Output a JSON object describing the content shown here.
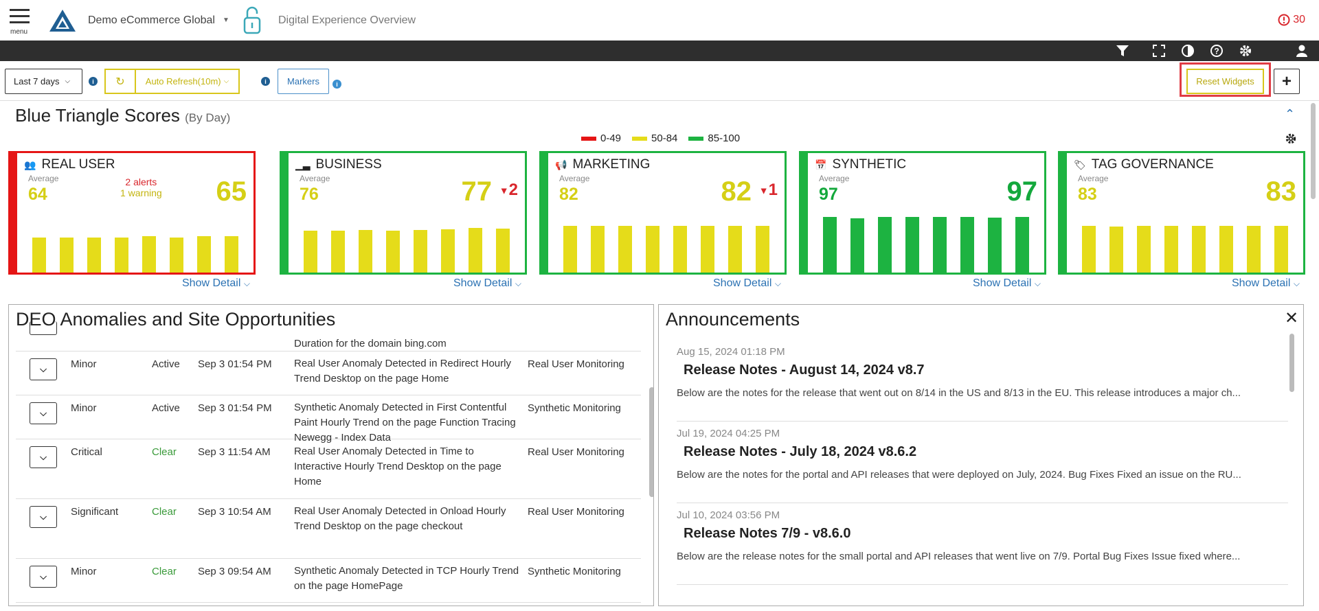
{
  "header": {
    "menu_label": "menu",
    "site_name": "Demo eCommerce Global",
    "page_name": "Digital Experience Overview",
    "alert_count": "30"
  },
  "toolbar_icons": [
    "filter-icon",
    "fullscreen-icon",
    "contrast-icon",
    "help-icon",
    "gear-icon",
    "user-icon"
  ],
  "controls": {
    "date_range": "Last 7 days",
    "auto_refresh": "Auto Refresh(10m)",
    "markers": "Markers",
    "reset_widgets": "Reset Widgets",
    "add": "+"
  },
  "scores": {
    "title": "Blue Triangle Scores",
    "subtitle": "(By Day)",
    "legend": [
      {
        "label": "0-49",
        "color": "#e51515"
      },
      {
        "label": "50-84",
        "color": "#e5dc1a"
      },
      {
        "label": "85-100",
        "color": "#1db341"
      }
    ],
    "cards": [
      {
        "name": "REAL USER",
        "avg_label": "Average",
        "avg": "64",
        "score": "65",
        "delta": "",
        "alerts": "2 alerts",
        "warnings": "1 warning",
        "status": "red",
        "bar_levels": [
          0.62,
          0.62,
          0.62,
          0.62,
          0.64,
          0.62,
          0.64,
          0.64
        ],
        "show_detail": "Show Detail"
      },
      {
        "name": "BUSINESS",
        "avg_label": "Average",
        "avg": "76",
        "score": "77",
        "delta": "2",
        "alerts": "",
        "warnings": "",
        "status": "yellow",
        "bar_levels": [
          0.73,
          0.74,
          0.75,
          0.74,
          0.75,
          0.76,
          0.78,
          0.77
        ],
        "show_detail": "Show Detail"
      },
      {
        "name": "MARKETING",
        "avg_label": "Average",
        "avg": "82",
        "score": "82",
        "delta": "1",
        "alerts": "",
        "warnings": "",
        "status": "yellow",
        "bar_levels": [
          0.82,
          0.82,
          0.82,
          0.82,
          0.82,
          0.82,
          0.82,
          0.82
        ],
        "show_detail": "Show Detail"
      },
      {
        "name": "SYNTHETIC",
        "avg_label": "Average",
        "avg": "97",
        "score": "97",
        "delta": "",
        "alerts": "",
        "warnings": "",
        "status": "green",
        "bar_levels": [
          0.98,
          0.95,
          0.97,
          0.97,
          0.97,
          0.97,
          0.96,
          0.97
        ],
        "show_detail": "Show Detail"
      },
      {
        "name": "TAG GOVERNANCE",
        "avg_label": "Average",
        "avg": "83",
        "score": "83",
        "delta": "",
        "alerts": "",
        "warnings": "",
        "status": "yellow",
        "bar_levels": [
          0.82,
          0.81,
          0.82,
          0.82,
          0.82,
          0.82,
          0.82,
          0.82
        ],
        "show_detail": "Show Detail"
      }
    ]
  },
  "anomalies": {
    "title": "DEO Anomalies and Site Opportunities",
    "partial_row_text": "Duration for the domain bing.com",
    "rows": [
      {
        "severity": "Minor",
        "status": "Active",
        "time": "Sep 3 01:54 PM",
        "description": "Real User Anomaly Detected in Redirect Hourly Trend Desktop on the page Home",
        "source": "Real User Monitoring"
      },
      {
        "severity": "Minor",
        "status": "Active",
        "time": "Sep 3 01:54 PM",
        "description": "Synthetic Anomaly Detected in First Contentful Paint Hourly Trend on the page Function Tracing Newegg - Index Data",
        "source": "Synthetic Monitoring"
      },
      {
        "severity": "Critical",
        "status": "Clear",
        "time": "Sep 3 11:54 AM",
        "description": "Real User Anomaly Detected in Time to Interactive Hourly Trend Desktop on the page Home",
        "source": "Real User Monitoring"
      },
      {
        "severity": "Significant",
        "status": "Clear",
        "time": "Sep 3 10:54 AM",
        "description": "Real User Anomaly Detected in Onload Hourly Trend Desktop on the page checkout",
        "source": "Real User Monitoring"
      },
      {
        "severity": "Minor",
        "status": "Clear",
        "time": "Sep 3 09:54 AM",
        "description": "Synthetic Anomaly Detected in TCP Hourly Trend on the page HomePage",
        "source": "Synthetic Monitoring"
      }
    ]
  },
  "announcements": {
    "title": "Announcements",
    "items": [
      {
        "date": "Aug 15, 2024 01:18 PM",
        "title": "Release Notes - August 14, 2024 v8.7",
        "body": "Below are the notes for the release that went out on 8/14 in the US and 8/13 in the EU.  This release introduces a major ch..."
      },
      {
        "date": "Jul 19, 2024 04:25 PM",
        "title": "Release Notes - July 18, 2024 v8.6.2",
        "body": "Below are the notes for the portal and API releases that were deployed on July, 2024.   Bug Fixes Fixed an issue on the RU..."
      },
      {
        "date": "Jul 10, 2024 03:56 PM",
        "title": "Release Notes 7/9 - v8.6.0",
        "body": "Below are the release notes for the small portal and API releases that went live on 7/9.   Portal Bug Fixes Issue fixed where..."
      }
    ]
  },
  "colors": {
    "red": "#e51515",
    "yellow": "#e5dc1a",
    "green": "#1db341",
    "accent_blue": "#2b72b3"
  }
}
